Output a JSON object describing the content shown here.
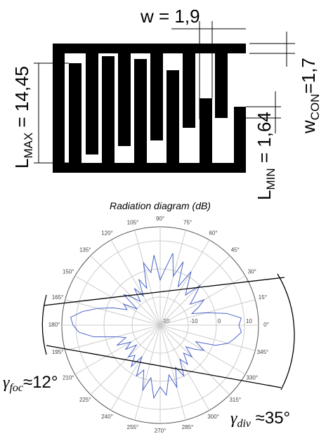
{
  "diagram": {
    "w": "w = 1,9",
    "l_max": {
      "main": "L",
      "sub": "MAX",
      "value": " = 14,45"
    },
    "w_con": {
      "main": "w",
      "sub": "CON",
      "value": "=1,7"
    },
    "l_min": {
      "main": "L",
      "sub": "MIN",
      "value": " = 1,64"
    },
    "gamma_foc": {
      "main": "γ",
      "sub": "foc",
      "value": "≈12°"
    },
    "gamma_div": {
      "main": "γ",
      "sub": "div",
      "value": " ≈35°"
    }
  },
  "chart_data": {
    "type": "polar",
    "title": "Radiation diagram (dB)",
    "color": "#4a63c8",
    "x": [
      0,
      5,
      10,
      15,
      20,
      25,
      30,
      35,
      40,
      45,
      50,
      55,
      60,
      65,
      70,
      75,
      80,
      85,
      90,
      95,
      100,
      105,
      110,
      115,
      120,
      125,
      130,
      135,
      140,
      145,
      150,
      155,
      160,
      165,
      170,
      175,
      180,
      185,
      190,
      195,
      200,
      205,
      210,
      215,
      220,
      225,
      230,
      235,
      240,
      245,
      250,
      255,
      260,
      265,
      270,
      275,
      280,
      285,
      290,
      295,
      300,
      305,
      310,
      315,
      320,
      325,
      330,
      335,
      340,
      345,
      350,
      355
    ],
    "values": [
      8,
      9,
      4,
      -3,
      -8,
      -5,
      -2,
      -7,
      -4,
      0,
      -6,
      -3,
      2,
      -5,
      4,
      -2,
      6,
      0,
      -4,
      5,
      -1,
      3,
      -6,
      -2,
      -8,
      -4,
      -9,
      -6,
      -3,
      -10,
      -5,
      -7,
      -2,
      3,
      8,
      12,
      11,
      9,
      4,
      -4,
      -7,
      -3,
      -8,
      -5,
      -9,
      -4,
      -6,
      -2,
      -7,
      0,
      -3,
      4,
      -1,
      6,
      2,
      5,
      -2,
      3,
      -4,
      0,
      -6,
      -3,
      -7,
      -4,
      -8,
      -5,
      -2,
      -6,
      1,
      5,
      7,
      9
    ],
    "xticks": [
      {
        "value": 0,
        "label": "0°"
      },
      {
        "value": 15,
        "label": "15°"
      },
      {
        "value": 30,
        "label": "30°"
      },
      {
        "value": 45,
        "label": "45°"
      },
      {
        "value": 60,
        "label": "60°"
      },
      {
        "value": 75,
        "label": "75°"
      },
      {
        "value": 90,
        "label": "90°"
      },
      {
        "value": 105,
        "label": "105°"
      },
      {
        "value": 120,
        "label": "120°"
      },
      {
        "value": 135,
        "label": "135°"
      },
      {
        "value": 150,
        "label": "150°"
      },
      {
        "value": 165,
        "label": "165°"
      },
      {
        "value": 180,
        "label": "180°"
      },
      {
        "value": 195,
        "label": "195°"
      },
      {
        "value": 210,
        "label": "210°"
      },
      {
        "value": 225,
        "label": "225°"
      },
      {
        "value": 240,
        "label": "240°"
      },
      {
        "value": 255,
        "label": "255°"
      },
      {
        "value": 270,
        "label": "270°"
      },
      {
        "value": 285,
        "label": "285°"
      },
      {
        "value": 300,
        "label": "300°"
      },
      {
        "value": 315,
        "label": "315°"
      },
      {
        "value": 330,
        "label": "330°"
      },
      {
        "value": 345,
        "label": "345°"
      }
    ],
    "ylim": [
      -20,
      15
    ],
    "yticks": [
      -20,
      -10,
      0,
      10
    ],
    "grid": true
  }
}
